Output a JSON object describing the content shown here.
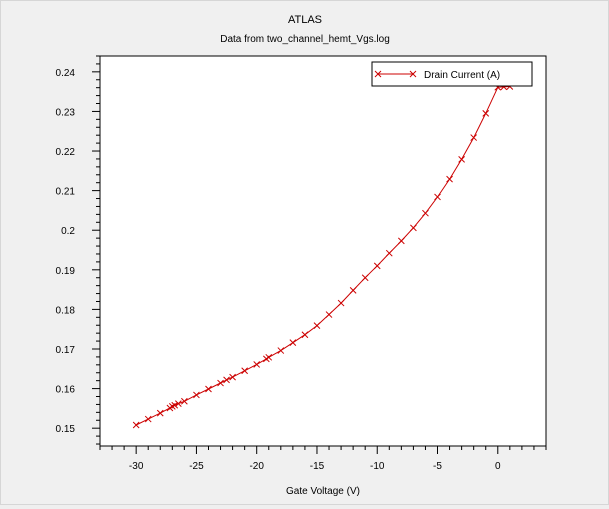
{
  "chart_data": {
    "type": "line",
    "title": "ATLAS",
    "subtitle": "Data from two_channel_hemt_Vgs.log",
    "xlabel": "Gate Voltage (V)",
    "ylabel": "",
    "xlim": [
      -33,
      4
    ],
    "ylim": [
      0.1455,
      0.244
    ],
    "x_ticks": [
      -30,
      -25,
      -20,
      -15,
      -10,
      -5,
      0
    ],
    "y_ticks": [
      0.15,
      0.16,
      0.17,
      0.18,
      0.19,
      0.2,
      0.21,
      0.22,
      0.23,
      0.24
    ],
    "x_tick_labels": [
      "-30",
      "-25",
      "-20",
      "-15",
      "-10",
      "-5",
      "0"
    ],
    "y_tick_labels": [
      "0.15",
      "0.16",
      "0.17",
      "0.18",
      "0.19",
      "0.2",
      "0.21",
      "0.22",
      "0.23",
      "0.24"
    ],
    "grid": false,
    "legend_position": "top-right",
    "series": [
      {
        "name": "Drain Current (A)",
        "color": "#cc0000",
        "marker": "x",
        "x": [
          -30,
          -29,
          -28,
          -27.2,
          -27,
          -26.8,
          -26.5,
          -26,
          -25,
          -24,
          -23,
          -22.5,
          -22,
          -21,
          -20,
          -19.2,
          -19,
          -18,
          -17,
          -16,
          -15,
          -14,
          -13,
          -12,
          -11,
          -10,
          -9,
          -8,
          -7,
          -6,
          -5,
          -4,
          -3,
          -2,
          -1,
          0,
          0.5,
          1
        ],
        "y": [
          0.1508,
          0.1523,
          0.1538,
          0.1551,
          0.1555,
          0.1558,
          0.1562,
          0.1568,
          0.1584,
          0.1599,
          0.1614,
          0.1622,
          0.1629,
          0.1645,
          0.1661,
          0.1675,
          0.1679,
          0.1696,
          0.1716,
          0.1736,
          0.1759,
          0.1787,
          0.1816,
          0.1848,
          0.188,
          0.191,
          0.1942,
          0.1973,
          0.2006,
          0.2043,
          0.2084,
          0.2129,
          0.2179,
          0.2234,
          0.2295,
          0.2361,
          0.2362,
          0.2363
        ]
      }
    ]
  }
}
